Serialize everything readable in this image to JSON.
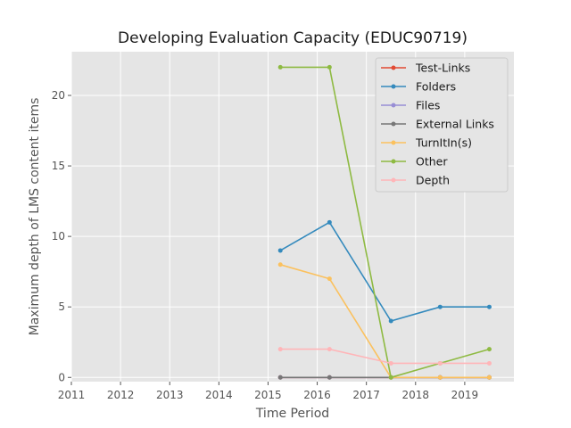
{
  "chart_data": {
    "type": "line",
    "title": "Developing Evaluation Capacity (EDUC90719)",
    "xlabel": "Time Period",
    "ylabel": "Maximum depth of LMS content items",
    "xlim": [
      2011,
      2020
    ],
    "ylim": [
      -0.3,
      23.1
    ],
    "xticks": [
      2011,
      2012,
      2013,
      2014,
      2015,
      2016,
      2017,
      2018,
      2019
    ],
    "yticks": [
      0,
      5,
      10,
      15,
      20
    ],
    "grid": true,
    "legend_position": "top-right",
    "x": [
      2015.25,
      2016.25,
      2017.5,
      2018.5,
      2019.5
    ],
    "series": [
      {
        "name": "Test-Links",
        "color": "#E24A33",
        "values": [
          0,
          0,
          0,
          0,
          0
        ]
      },
      {
        "name": "Folders",
        "color": "#348ABD",
        "values": [
          9,
          11,
          4,
          5,
          5
        ]
      },
      {
        "name": "Files",
        "color": "#988ED5",
        "values": [
          0,
          0,
          0,
          0,
          0
        ]
      },
      {
        "name": "External Links",
        "color": "#777777",
        "values": [
          0,
          0,
          0,
          0,
          0
        ]
      },
      {
        "name": "TurnItIn(s)",
        "color": "#FBC15E",
        "values": [
          8,
          7,
          0,
          0,
          0
        ]
      },
      {
        "name": "Other",
        "color": "#8EBA42",
        "values": [
          22,
          22,
          0,
          1,
          2
        ]
      },
      {
        "name": "Depth",
        "color": "#FFB5B8",
        "values": [
          2,
          2,
          1,
          1,
          1
        ]
      }
    ]
  }
}
